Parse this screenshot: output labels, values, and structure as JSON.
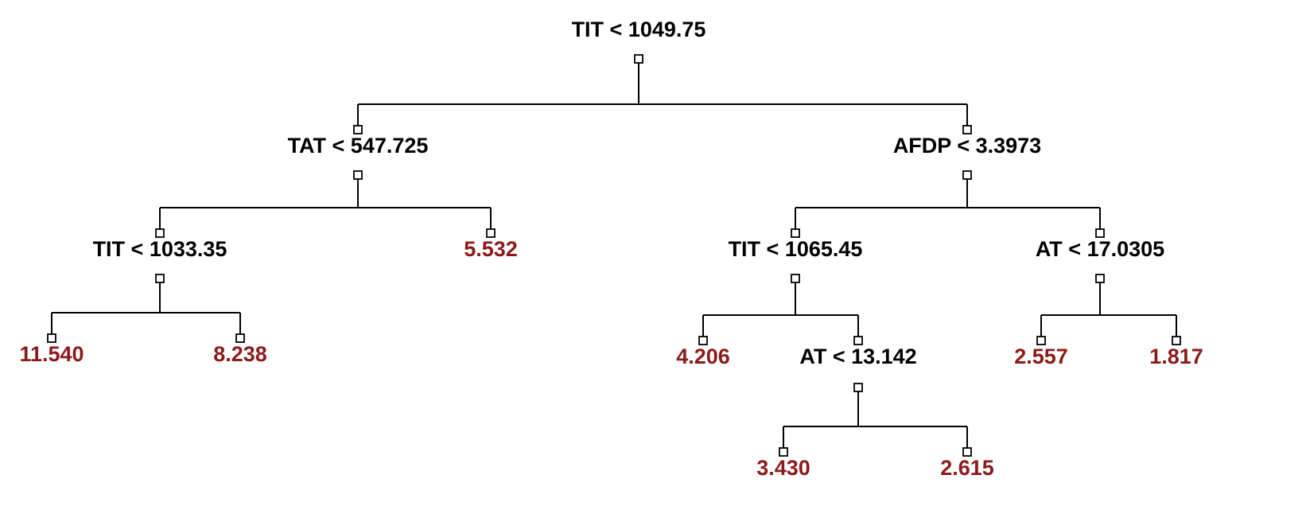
{
  "colors": {
    "split": "#000000",
    "leaf": "#8b1a1a",
    "edge": "#000000"
  },
  "nodes": [
    {
      "id": "n1",
      "label": "TIT < 1049.75",
      "type": "split"
    },
    {
      "id": "n2",
      "label": "TAT < 547.725",
      "type": "split",
      "parent": "n1"
    },
    {
      "id": "n3",
      "label": "AFDP < 3.3973",
      "type": "split",
      "parent": "n1"
    },
    {
      "id": "n4",
      "label": "TIT < 1033.35",
      "type": "split",
      "parent": "n2"
    },
    {
      "id": "n5",
      "label": "5.532",
      "type": "leaf",
      "parent": "n2"
    },
    {
      "id": "n6",
      "label": "TIT < 1065.45",
      "type": "split",
      "parent": "n3"
    },
    {
      "id": "n7",
      "label": "AT < 17.0305",
      "type": "split",
      "parent": "n3"
    },
    {
      "id": "n8",
      "label": "11.540",
      "type": "leaf",
      "parent": "n4"
    },
    {
      "id": "n9",
      "label": "8.238",
      "type": "leaf",
      "parent": "n4"
    },
    {
      "id": "n10",
      "label": "4.206",
      "type": "leaf",
      "parent": "n6"
    },
    {
      "id": "n11",
      "label": "AT < 13.142",
      "type": "split",
      "parent": "n6"
    },
    {
      "id": "n12",
      "label": "2.557",
      "type": "leaf",
      "parent": "n7"
    },
    {
      "id": "n13",
      "label": "1.817",
      "type": "leaf",
      "parent": "n7"
    },
    {
      "id": "n14",
      "label": "3.430",
      "type": "leaf",
      "parent": "n11"
    },
    {
      "id": "n15",
      "label": "2.615",
      "type": "leaf",
      "parent": "n11"
    }
  ]
}
